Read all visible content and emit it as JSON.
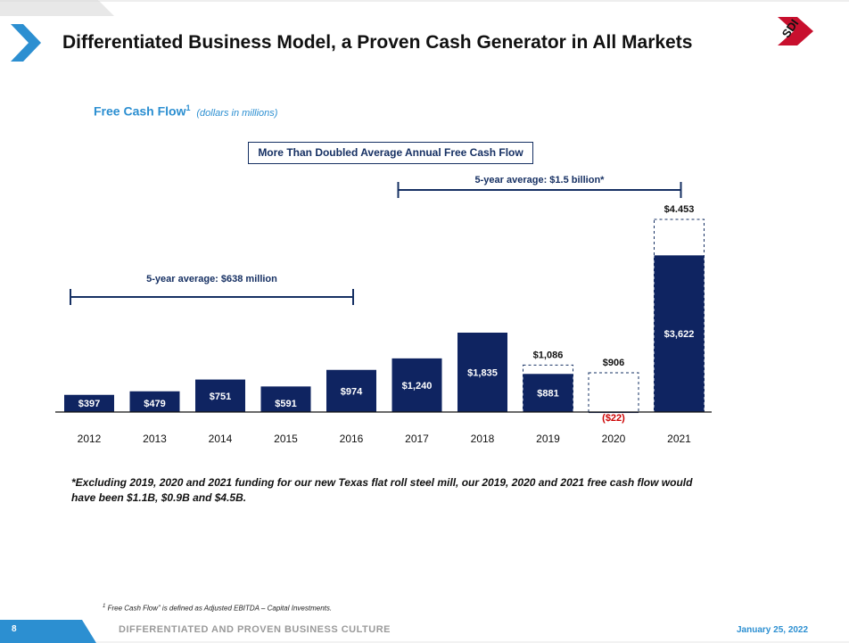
{
  "header": {
    "title": "Differentiated Business Model, a Proven Cash Generator in All Markets",
    "logo_text": "SDI"
  },
  "subtitle": {
    "text": "Free Cash Flow",
    "superscript": "1",
    "unit": "(dollars in millions)"
  },
  "callout": "More Than Doubled Average Annual Free Cash Flow",
  "chart_data": {
    "type": "bar",
    "categories": [
      "2012",
      "2013",
      "2014",
      "2015",
      "2016",
      "2017",
      "2018",
      "2019",
      "2020",
      "2021"
    ],
    "values": [
      397,
      479,
      751,
      591,
      974,
      1240,
      1835,
      881,
      -22,
      3622
    ],
    "value_labels": [
      "$397",
      "$479",
      "$751",
      "$591",
      "$974",
      "$1,240",
      "$1,835",
      "$881",
      "($22)",
      "$3,622"
    ],
    "adjusted_totals": [
      {
        "category": "2019",
        "value": 1086,
        "label": "$1,086"
      },
      {
        "category": "2020",
        "value": 906,
        "label": "$906"
      },
      {
        "category": "2021",
        "value": 4453,
        "label": "$4.453"
      }
    ],
    "averages": [
      {
        "label": "5-year average: $638 million",
        "from": "2012",
        "to": "2016"
      },
      {
        "label": "5-year average: $1.5 billion*",
        "from": "2017",
        "to": "2021"
      }
    ],
    "bar_color": "#0f2461",
    "negative_label_color": "#cc0000",
    "bracket_color": "#163063",
    "grid": false
  },
  "footnote": "*Excluding 2019, 2020 and 2021 funding for our new Texas flat roll steel mill, our 2019, 2020 and 2021 free cash flow would have been $1.1B, $0.9B and $4.5B.",
  "definition": {
    "superscript": "1",
    "text": " Free Cash Flow” is defined as Adjusted EBITDA – Capital Investments."
  },
  "footer": {
    "page": "8",
    "tagline": "DIFFERENTIATED AND PROVEN BUSINESS CULTURE",
    "date": "January 25, 2022"
  },
  "colors": {
    "accent_blue": "#2c8fd1",
    "navy": "#0f2461",
    "logo_red": "#c8102e"
  }
}
